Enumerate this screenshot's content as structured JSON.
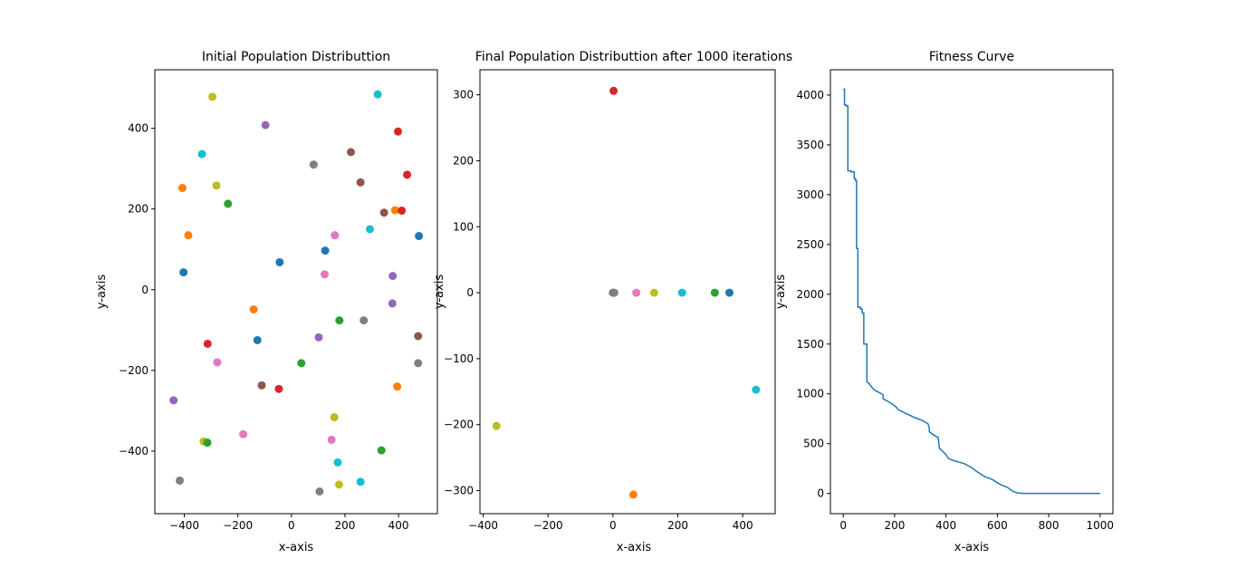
{
  "chart_data": [
    {
      "type": "scatter",
      "title": "Initial Population Distributtion",
      "xlabel": "x-axis",
      "ylabel": "y-axis",
      "xlim": [
        -510,
        545
      ],
      "ylim": [
        -555,
        545
      ],
      "xticks": [
        -400,
        -200,
        0,
        200,
        400
      ],
      "yticks": [
        -400,
        -200,
        0,
        200,
        400
      ],
      "tick_labels_x": [
        "−400",
        "−200",
        "0",
        "200",
        "400"
      ],
      "tick_labels_y": [
        "−400",
        "−200",
        "0",
        "200",
        "400"
      ],
      "points": [
        {
          "x": 322,
          "y": 484,
          "color": "#17becf"
        },
        {
          "x": -295,
          "y": 478,
          "color": "#bcbd22"
        },
        {
          "x": -97,
          "y": 408,
          "color": "#9467bd"
        },
        {
          "x": 398,
          "y": 392,
          "color": "#d62728"
        },
        {
          "x": -334,
          "y": 336,
          "color": "#17becf"
        },
        {
          "x": 222,
          "y": 341,
          "color": "#8c564b"
        },
        {
          "x": 83,
          "y": 310,
          "color": "#7f7f7f"
        },
        {
          "x": 432,
          "y": 285,
          "color": "#d62728"
        },
        {
          "x": 258,
          "y": 266,
          "color": "#8c564b"
        },
        {
          "x": -407,
          "y": 252,
          "color": "#ff7f0e"
        },
        {
          "x": -280,
          "y": 258,
          "color": "#bcbd22"
        },
        {
          "x": -237,
          "y": 213,
          "color": "#2ca02c"
        },
        {
          "x": 387,
          "y": 197,
          "color": "#ff7f0e"
        },
        {
          "x": 412,
          "y": 196,
          "color": "#d62728"
        },
        {
          "x": 346,
          "y": 191,
          "color": "#8c564b"
        },
        {
          "x": -385,
          "y": 135,
          "color": "#ff7f0e"
        },
        {
          "x": 293,
          "y": 150,
          "color": "#17becf"
        },
        {
          "x": 162,
          "y": 135,
          "color": "#e377c2"
        },
        {
          "x": 476,
          "y": 133,
          "color": "#1f77b4"
        },
        {
          "x": 126,
          "y": 97,
          "color": "#1f77b4"
        },
        {
          "x": -44,
          "y": 68,
          "color": "#1f77b4"
        },
        {
          "x": -403,
          "y": 43,
          "color": "#1f77b4"
        },
        {
          "x": 124,
          "y": 38,
          "color": "#e377c2"
        },
        {
          "x": 378,
          "y": 34,
          "color": "#9467bd"
        },
        {
          "x": 377,
          "y": -34,
          "color": "#9467bd"
        },
        {
          "x": -141,
          "y": -49,
          "color": "#ff7f0e"
        },
        {
          "x": 179,
          "y": -76,
          "color": "#2ca02c"
        },
        {
          "x": 270,
          "y": -76,
          "color": "#7f7f7f"
        },
        {
          "x": 102,
          "y": -118,
          "color": "#9467bd"
        },
        {
          "x": 473,
          "y": -115,
          "color": "#8c564b"
        },
        {
          "x": -127,
          "y": -125,
          "color": "#1f77b4"
        },
        {
          "x": -313,
          "y": -134,
          "color": "#d62728"
        },
        {
          "x": -277,
          "y": -180,
          "color": "#e377c2"
        },
        {
          "x": 37,
          "y": -182,
          "color": "#2ca02c"
        },
        {
          "x": 473,
          "y": -182,
          "color": "#7f7f7f"
        },
        {
          "x": -111,
          "y": -237,
          "color": "#8c564b"
        },
        {
          "x": -47,
          "y": -246,
          "color": "#d62728"
        },
        {
          "x": 395,
          "y": -240,
          "color": "#ff7f0e"
        },
        {
          "x": -440,
          "y": -274,
          "color": "#9467bd"
        },
        {
          "x": 160,
          "y": -316,
          "color": "#bcbd22"
        },
        {
          "x": -180,
          "y": -358,
          "color": "#e377c2"
        },
        {
          "x": 150,
          "y": -372,
          "color": "#e377c2"
        },
        {
          "x": -328,
          "y": -376,
          "color": "#bcbd22"
        },
        {
          "x": -314,
          "y": -379,
          "color": "#2ca02c"
        },
        {
          "x": 336,
          "y": -398,
          "color": "#2ca02c"
        },
        {
          "x": 173,
          "y": -428,
          "color": "#17becf"
        },
        {
          "x": -417,
          "y": -473,
          "color": "#7f7f7f"
        },
        {
          "x": 258,
          "y": -476,
          "color": "#17becf"
        },
        {
          "x": 178,
          "y": -483,
          "color": "#bcbd22"
        },
        {
          "x": 105,
          "y": -500,
          "color": "#7f7f7f"
        }
      ]
    },
    {
      "type": "scatter",
      "title": "Final Population Distributtion after 1000 iterations",
      "xlabel": "x-axis",
      "ylabel": "y-axis",
      "xlim": [
        -410,
        500
      ],
      "ylim": [
        -335,
        338
      ],
      "xticks": [
        -400,
        -200,
        0,
        200,
        400
      ],
      "yticks": [
        -300,
        -200,
        -100,
        0,
        100,
        200,
        300
      ],
      "tick_labels_x": [
        "−400",
        "−200",
        "0",
        "200",
        "400"
      ],
      "tick_labels_y": [
        "−300",
        "−200",
        "−100",
        "0",
        "100",
        "200",
        "300"
      ],
      "points": [
        {
          "x": 2,
          "y": 306,
          "color": "#d62728"
        },
        {
          "x": 0,
          "y": 0,
          "color": "#8c564b"
        },
        {
          "x": 2,
          "y": 0,
          "color": "#9467bd"
        },
        {
          "x": 4,
          "y": 0,
          "color": "#7f7f7f"
        },
        {
          "x": 72,
          "y": 0,
          "color": "#e377c2"
        },
        {
          "x": 127,
          "y": 0,
          "color": "#bcbd22"
        },
        {
          "x": 213,
          "y": 0,
          "color": "#17becf"
        },
        {
          "x": 314,
          "y": 0,
          "color": "#2ca02c"
        },
        {
          "x": 359,
          "y": 0,
          "color": "#1f77b4"
        },
        {
          "x": 441,
          "y": -147,
          "color": "#17becf"
        },
        {
          "x": -359,
          "y": -202,
          "color": "#bcbd22"
        },
        {
          "x": 63,
          "y": -306,
          "color": "#ff7f0e"
        }
      ]
    },
    {
      "type": "line",
      "title": "Fitness Curve",
      "xlabel": "x-axis",
      "ylabel": "y-axis",
      "xlim": [
        -50,
        1050
      ],
      "ylim": [
        -203,
        4254
      ],
      "xticks": [
        0,
        200,
        400,
        600,
        800,
        1000
      ],
      "yticks": [
        0,
        500,
        1000,
        1500,
        2000,
        2500,
        3000,
        3500,
        4000
      ],
      "tick_labels_x": [
        "0",
        "200",
        "400",
        "600",
        "800",
        "1000"
      ],
      "tick_labels_y": [
        "0",
        "500",
        "1000",
        "1500",
        "2000",
        "2500",
        "3000",
        "3500",
        "4000"
      ],
      "series": [
        {
          "color": "#1f77b4",
          "x": [
            0,
            5,
            5,
            12,
            12,
            18,
            18,
            30,
            30,
            43,
            43,
            48,
            48,
            52,
            52,
            57,
            57,
            68,
            68,
            74,
            74,
            80,
            80,
            92,
            92,
            102,
            110,
            120,
            135,
            150,
            155,
            155,
            170,
            190,
            205,
            215,
            230,
            255,
            280,
            310,
            330,
            335,
            335,
            350,
            370,
            372,
            375,
            385,
            400,
            410,
            430,
            470,
            500,
            520,
            550,
            580,
            605,
            620,
            640,
            660,
            680,
            700,
            750,
            800,
            900,
            1000
          ],
          "y": [
            4060,
            4060,
            3900,
            3900,
            3890,
            3890,
            3240,
            3240,
            3230,
            3230,
            3160,
            3160,
            3140,
            3140,
            2460,
            2460,
            1870,
            1870,
            1850,
            1850,
            1810,
            1810,
            1500,
            1500,
            1120,
            1100,
            1070,
            1040,
            1020,
            1000,
            990,
            950,
            930,
            900,
            870,
            840,
            820,
            790,
            760,
            730,
            700,
            660,
            620,
            590,
            560,
            500,
            450,
            430,
            390,
            350,
            330,
            300,
            260,
            220,
            170,
            140,
            100,
            80,
            60,
            20,
            5,
            0,
            0,
            0,
            0,
            0
          ]
        }
      ]
    }
  ]
}
